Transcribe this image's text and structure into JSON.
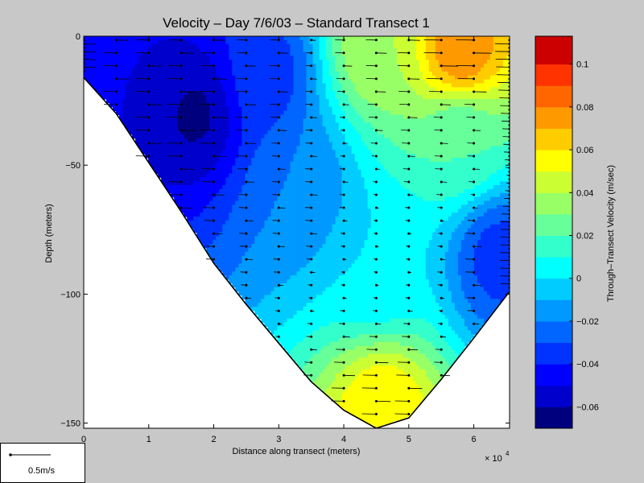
{
  "chart_data": {
    "type": "heatmap",
    "title": "Velocity – Day 7/6/03 – Standard Transect 1",
    "xlabel": "Distance along transect (meters)",
    "ylabel": "Depth (meters)",
    "x_multiplier_label": "× 10",
    "x_multiplier_exponent": "4",
    "xlim": [
      0,
      6.55
    ],
    "ylim": [
      -152,
      0
    ],
    "x_ticks": [
      0,
      1,
      2,
      3,
      4,
      5,
      6
    ],
    "x_tick_labels": [
      "0",
      "1",
      "2",
      "3",
      "4",
      "5",
      "6"
    ],
    "y_ticks": [
      0,
      -50,
      -100,
      -150
    ],
    "y_tick_labels": [
      "0",
      "−50",
      "−100",
      "−150"
    ],
    "colorbar": {
      "label": "Through–Transect Velocity (m/sec)",
      "range": [
        -0.07,
        0.113
      ],
      "ticks": [
        -0.06,
        -0.04,
        -0.02,
        0,
        0.02,
        0.04,
        0.06,
        0.08,
        0.1
      ],
      "tick_labels": [
        "−0.06",
        "−0.04",
        "−0.02",
        "0",
        "0.02",
        "0.04",
        "0.06",
        "0.08",
        "0.1"
      ],
      "levels": [
        -0.06,
        -0.05,
        -0.04,
        -0.03,
        -0.02,
        -0.01,
        0,
        0.01,
        0.02,
        0.03,
        0.04,
        0.05,
        0.06,
        0.07,
        0.08,
        0.09,
        0.1
      ],
      "colors": [
        "#00007f",
        "#0000cc",
        "#0000ff",
        "#0033ff",
        "#0066ff",
        "#0099ff",
        "#00ccff",
        "#00ffff",
        "#33ffcc",
        "#66ff99",
        "#99ff66",
        "#ccff33",
        "#ffff00",
        "#ffcc00",
        "#ff9900",
        "#ff6600",
        "#ff3300",
        "#cc0000"
      ]
    },
    "bottom_profile": [
      [
        0,
        -16
      ],
      [
        0.5,
        -30
      ],
      [
        1,
        -49
      ],
      [
        1.5,
        -68
      ],
      [
        2,
        -88
      ],
      [
        2.5,
        -104
      ],
      [
        3,
        -119
      ],
      [
        3.5,
        -134
      ],
      [
        4,
        -145
      ],
      [
        4.5,
        -152
      ],
      [
        5,
        -148
      ],
      [
        5.5,
        -133
      ],
      [
        6,
        -117
      ],
      [
        6.55,
        -99
      ]
    ],
    "station_x": [
      0,
      0.5,
      1,
      1.5,
      2,
      2.5,
      3,
      3.5,
      4,
      4.5,
      5,
      5.5,
      6,
      6.55
    ],
    "depth_bin_spacing_m": 5,
    "velocity_field_description_points": [
      {
        "x": 1.7,
        "y": -30,
        "v": -0.062
      },
      {
        "x": 1.0,
        "y": -15,
        "v": -0.05
      },
      {
        "x": 2.8,
        "y": -15,
        "v": -0.035
      },
      {
        "x": 3.3,
        "y": -60,
        "v": -0.02
      },
      {
        "x": 4.5,
        "y": -5,
        "v": 0.04
      },
      {
        "x": 5.8,
        "y": -5,
        "v": 0.08
      },
      {
        "x": 5.8,
        "y": -40,
        "v": 0.02
      },
      {
        "x": 4.6,
        "y": -145,
        "v": 0.06
      },
      {
        "x": 6.4,
        "y": -85,
        "v": -0.035
      },
      {
        "x": 4.5,
        "y": -90,
        "v": 0.0
      }
    ]
  },
  "scale_legend": {
    "label": "0.5m/s",
    "reference_speed": 0.5
  }
}
